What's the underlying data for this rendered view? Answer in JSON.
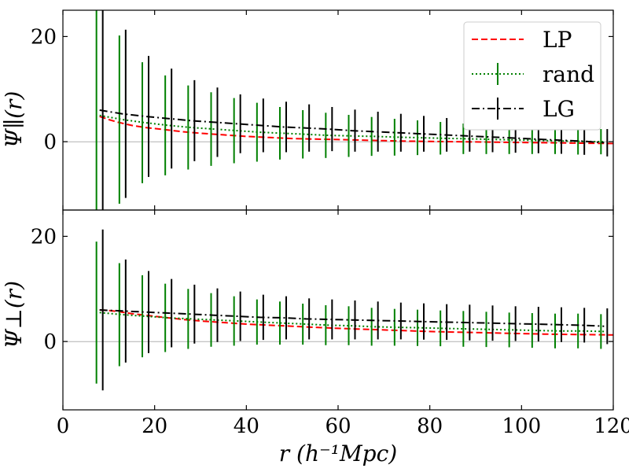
{
  "chart_data": {
    "type": "line",
    "xlabel": "r (h⁻¹Mpc)",
    "xlim": [
      0,
      120
    ],
    "xticks": [
      0,
      20,
      40,
      60,
      80,
      100,
      120
    ],
    "legend": {
      "position": "top-right",
      "entries": [
        {
          "label": "LP",
          "color": "#ff0000",
          "style": "dashed"
        },
        {
          "label": "rand",
          "color": "#008000",
          "style": "dotted"
        },
        {
          "label": "LG",
          "color": "#000000",
          "style": "dashdot"
        }
      ]
    },
    "panels": [
      {
        "name": "parallel",
        "ylabel": "Ψ∥(r)",
        "ylim": [
          -13,
          25
        ],
        "yticks": [
          0,
          20
        ],
        "x": [
          8,
          13,
          18,
          23,
          28,
          33,
          38,
          43,
          48,
          53,
          58,
          63,
          68,
          73,
          78,
          83,
          88,
          93,
          98,
          103,
          108,
          113,
          118
        ],
        "series": [
          {
            "name": "LP",
            "color": "#ff0000",
            "style": "dashed",
            "x": [
              8,
              10,
              12,
              15,
              18,
              22,
              26,
              30,
              35,
              40,
              45,
              50,
              55,
              60,
              65,
              70,
              75,
              80,
              85,
              90,
              95,
              100,
              105,
              110,
              115,
              120
            ],
            "values": [
              4.8,
              4.2,
              3.7,
              3.1,
              2.7,
              2.3,
              1.9,
              1.6,
              1.3,
              1.0,
              0.8,
              0.6,
              0.5,
              0.4,
              0.3,
              0.2,
              0.1,
              0.05,
              0.0,
              -0.05,
              -0.1,
              -0.15,
              -0.2,
              -0.25,
              -0.3,
              -0.35
            ]
          },
          {
            "name": "rand",
            "color": "#008000",
            "style": "dotted",
            "values": [
              5.0,
              4.2,
              3.6,
              3.1,
              2.7,
              2.4,
              2.1,
              1.8,
              1.6,
              1.4,
              1.2,
              1.1,
              1.0,
              0.85,
              0.75,
              0.65,
              0.55,
              0.45,
              0.35,
              0.25,
              0.15,
              0.05,
              0.0
            ],
            "errors": [
              20.0,
              16.0,
              11.5,
              9.5,
              8.0,
              7.0,
              6.2,
              5.6,
              5.0,
              4.6,
              4.3,
              4.0,
              3.7,
              3.5,
              3.3,
              3.1,
              2.9,
              2.8,
              2.7,
              2.6,
              2.5,
              2.5,
              2.4
            ]
          },
          {
            "name": "LG",
            "color": "#000000",
            "style": "dashdot",
            "values": [
              6.0,
              5.3,
              4.8,
              4.4,
              4.0,
              3.7,
              3.4,
              3.1,
              2.8,
              2.6,
              2.4,
              2.1,
              1.9,
              1.7,
              1.5,
              1.3,
              1.1,
              0.9,
              0.7,
              0.5,
              0.3,
              0.1,
              -0.2
            ],
            "errors": [
              25.0,
              16.0,
              11.5,
              9.5,
              7.7,
              6.6,
              5.6,
              5.1,
              4.8,
              4.5,
              4.2,
              4.0,
              3.8,
              3.6,
              3.4,
              3.2,
              3.0,
              2.9,
              2.8,
              2.7,
              2.6,
              2.6,
              2.6
            ]
          }
        ]
      },
      {
        "name": "perpendicular",
        "ylabel": "Ψ⊥(r)",
        "ylim": [
          -13,
          25
        ],
        "yticks": [
          0,
          20
        ],
        "x": [
          8,
          13,
          18,
          23,
          28,
          33,
          38,
          43,
          48,
          53,
          58,
          63,
          68,
          73,
          78,
          83,
          88,
          93,
          98,
          103,
          108,
          113,
          118
        ],
        "series": [
          {
            "name": "LP",
            "color": "#ff0000",
            "style": "dashed",
            "x": [
              8,
              10,
              12,
              15,
              18,
              22,
              26,
              30,
              35,
              40,
              45,
              50,
              55,
              60,
              65,
              70,
              75,
              80,
              85,
              90,
              95,
              100,
              105,
              110,
              115,
              120
            ],
            "values": [
              6.0,
              5.9,
              5.7,
              5.3,
              5.0,
              4.6,
              4.2,
              3.9,
              3.6,
              3.3,
              3.1,
              2.9,
              2.7,
              2.5,
              2.35,
              2.2,
              2.05,
              1.9,
              1.8,
              1.7,
              1.6,
              1.5,
              1.4,
              1.35,
              1.3,
              1.25
            ]
          },
          {
            "name": "rand",
            "color": "#008000",
            "style": "dotted",
            "values": [
              5.5,
              5.1,
              4.8,
              4.5,
              4.3,
              4.1,
              3.9,
              3.7,
              3.5,
              3.3,
              3.1,
              3.0,
              2.8,
              2.7,
              2.6,
              2.5,
              2.4,
              2.3,
              2.2,
              2.1,
              2.0,
              2.0,
              1.9
            ],
            "errors": [
              13.5,
              9.8,
              7.8,
              6.5,
              5.7,
              5.1,
              4.7,
              4.3,
              4.1,
              3.9,
              3.8,
              3.7,
              3.6,
              3.5,
              3.45,
              3.4,
              3.4,
              3.35,
              3.3,
              3.3,
              3.3,
              3.3,
              3.3
            ]
          },
          {
            "name": "LG",
            "color": "#000000",
            "style": "dashdot",
            "values": [
              6.0,
              5.8,
              5.6,
              5.4,
              5.2,
              5.0,
              4.8,
              4.6,
              4.5,
              4.3,
              4.2,
              4.1,
              4.0,
              3.9,
              3.8,
              3.7,
              3.6,
              3.5,
              3.4,
              3.3,
              3.2,
              3.1,
              2.9
            ],
            "errors": [
              15.3,
              9.8,
              7.8,
              6.5,
              5.6,
              5.1,
              4.7,
              4.3,
              4.1,
              3.9,
              3.8,
              3.7,
              3.6,
              3.5,
              3.45,
              3.4,
              3.4,
              3.35,
              3.3,
              3.3,
              3.3,
              3.3,
              3.4
            ]
          }
        ]
      }
    ]
  }
}
